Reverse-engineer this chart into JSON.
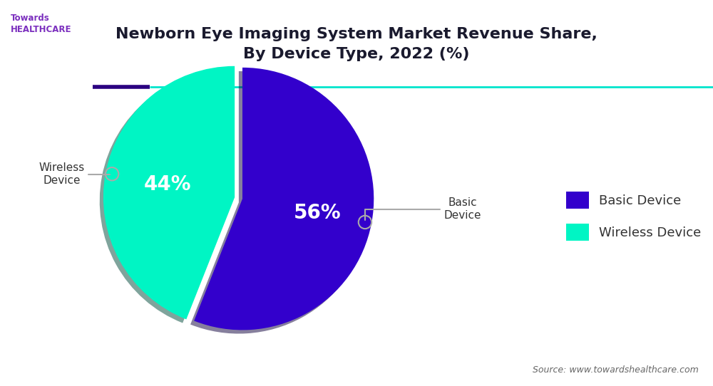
{
  "title": "Newborn Eye Imaging System Market Revenue Share,\nBy Device Type, 2022 (%)",
  "slices": [
    56,
    44
  ],
  "labels": [
    "Basic Device",
    "Wireless Device"
  ],
  "colors": [
    "#3300cc",
    "#00f5c4"
  ],
  "pct_labels": [
    "56%",
    "44%"
  ],
  "legend_labels": [
    "Basic Device",
    "Wireless Device"
  ],
  "source_text": "Source: www.towardshealthcare.com",
  "bg_color": "#ffffff",
  "title_color": "#1a1a2e",
  "explode": [
    0,
    0.06
  ],
  "line_color_dark": "#2a0080",
  "line_color_teal": "#00e5cc"
}
